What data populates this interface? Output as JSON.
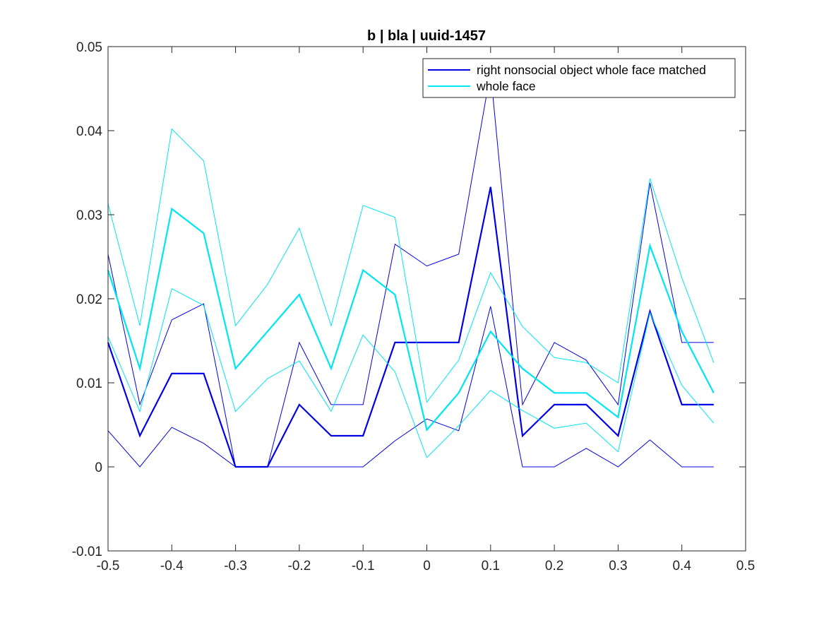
{
  "chart_data": {
    "type": "line",
    "title": "b | bla | uuid-1457",
    "xlabel": "",
    "ylabel": "",
    "xlim": [
      -0.5,
      0.5
    ],
    "ylim": [
      -0.01,
      0.05
    ],
    "xticks": [
      "-0.5",
      "-0.4",
      "-0.3",
      "-0.2",
      "-0.1",
      "0",
      "0.1",
      "0.2",
      "0.3",
      "0.4",
      "0.5"
    ],
    "yticks": [
      "-0.01",
      "0",
      "0.01",
      "0.02",
      "0.03",
      "0.04",
      "0.05"
    ],
    "grid": false,
    "legend_position": "top-right",
    "x": [
      -0.5,
      -0.45,
      -0.4,
      -0.35,
      -0.3,
      -0.25,
      -0.2,
      -0.15,
      -0.1,
      -0.05,
      0,
      0.05,
      0.1,
      0.15,
      0.2,
      0.25,
      0.3,
      0.35,
      0.4,
      0.45
    ],
    "series": [
      {
        "name": "right nonsocial object whole face matched",
        "color": "#0000e6",
        "values": [
          0.0148,
          0.0037,
          0.0111,
          0.0111,
          0.0,
          0.0,
          0.0074,
          0.0037,
          0.0037,
          0.0148,
          0.0148,
          0.0148,
          0.0333,
          0.0037,
          0.0074,
          0.0074,
          0.0037,
          0.0185,
          0.0074,
          0.0074
        ],
        "upper": [
          0.0253,
          0.0074,
          0.0175,
          0.0194,
          0.0,
          0.0,
          0.0148,
          0.0074,
          0.0074,
          0.0265,
          0.0239,
          0.0253,
          0.047,
          0.0074,
          0.0148,
          0.0127,
          0.0074,
          0.0338,
          0.0148,
          0.0148
        ],
        "lower": [
          0.0043,
          0.0,
          0.0047,
          0.0028,
          0.0,
          0.0,
          0.0,
          0.0,
          0.0,
          0.0031,
          0.0057,
          0.0043,
          0.0191,
          0.0,
          0.0,
          0.0022,
          0.0,
          0.0032,
          0.0,
          0.0
        ]
      },
      {
        "name": "whole face",
        "color": "#00e6f0",
        "values": [
          0.0234,
          0.0117,
          0.0307,
          0.0278,
          0.0117,
          0.0161,
          0.0205,
          0.0117,
          0.0234,
          0.0205,
          0.0044,
          0.0088,
          0.0161,
          0.0117,
          0.0088,
          0.0088,
          0.0059,
          0.0263,
          0.0161,
          0.0088
        ],
        "upper": [
          0.0313,
          0.0168,
          0.0402,
          0.0364,
          0.0168,
          0.0217,
          0.0284,
          0.0168,
          0.0311,
          0.0297,
          0.0077,
          0.0127,
          0.0231,
          0.0167,
          0.013,
          0.0124,
          0.01,
          0.0343,
          0.0225,
          0.0124
        ],
        "lower": [
          0.0155,
          0.0066,
          0.0212,
          0.0192,
          0.0066,
          0.0105,
          0.0126,
          0.0066,
          0.0157,
          0.0113,
          0.0011,
          0.0049,
          0.0091,
          0.0067,
          0.0046,
          0.0052,
          0.0018,
          0.0183,
          0.0097,
          0.0052
        ]
      }
    ]
  }
}
